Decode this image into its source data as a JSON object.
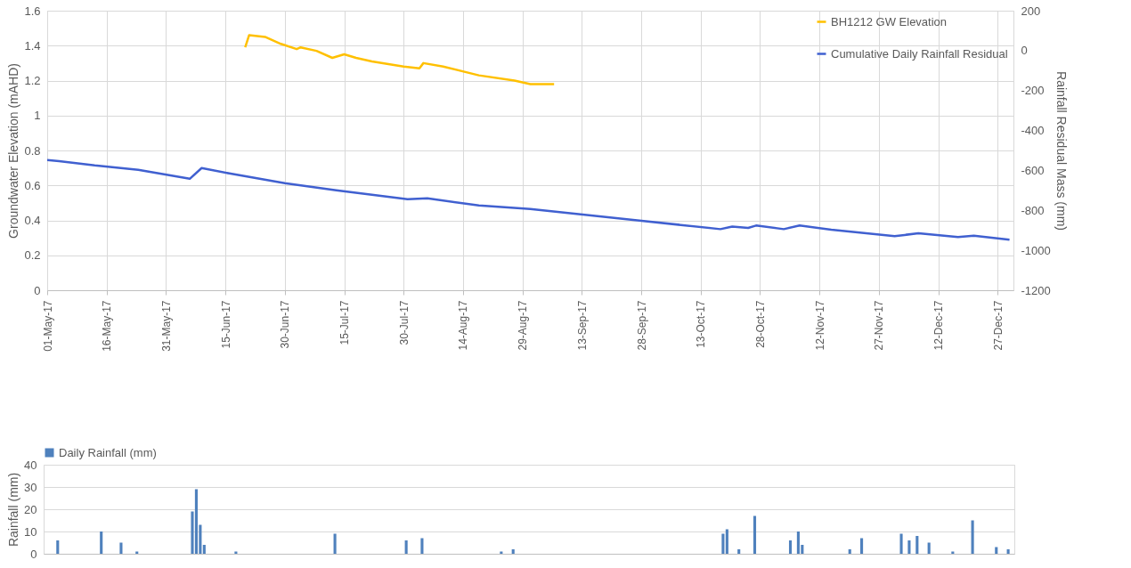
{
  "chart_data": [
    {
      "type": "line",
      "ylabel": "Groundwater Elevation (mAHD)",
      "y2label": "Rainfall Residual Mass (mm)",
      "legend": "top right",
      "grid": true,
      "xlim": [
        "--05-01",
        "--12-31"
      ],
      "xticks": [
        {
          "value": "--05-01",
          "label": "01-May-17"
        },
        {
          "value": "--05-16",
          "label": "16-May-17"
        },
        {
          "value": "--05-31",
          "label": "31-May-17"
        },
        {
          "value": "--06-15",
          "label": "15-Jun-17"
        },
        {
          "value": "--06-30",
          "label": "30-Jun-17"
        },
        {
          "value": "--07-15",
          "label": "15-Jul-17"
        },
        {
          "value": "--07-30",
          "label": "30-Jul-17"
        },
        {
          "value": "--08-14",
          "label": "14-Aug-17"
        },
        {
          "value": "--08-29",
          "label": "29-Aug-17"
        },
        {
          "value": "--09-13",
          "label": "13-Sep-17"
        },
        {
          "value": "--09-28",
          "label": "28-Sep-17"
        },
        {
          "value": "--10-13",
          "label": "13-Oct-17"
        },
        {
          "value": "--10-28",
          "label": "28-Oct-17"
        },
        {
          "value": "--11-12",
          "label": "12-Nov-17"
        },
        {
          "value": "--11-27",
          "label": "27-Nov-17"
        },
        {
          "value": "--12-12",
          "label": "12-Dec-17"
        },
        {
          "value": "--12-27",
          "label": "27-Dec-17"
        }
      ],
      "ylim": [
        0,
        1.6
      ],
      "yticks": [
        0,
        {
          "value": 0.2,
          "label": "0.2"
        },
        {
          "value": 0.4,
          "label": "0.4"
        },
        {
          "value": 0.6,
          "label": "0.6"
        },
        {
          "value": 0.8,
          "label": "0.8"
        },
        1,
        {
          "value": 1.2,
          "label": "1.2"
        },
        {
          "value": 1.4,
          "label": "1.4"
        },
        {
          "value": 1.6,
          "label": "1.6"
        }
      ],
      "y2lim": [
        -1200,
        200
      ],
      "y2ticks": [
        -1200,
        -1000,
        -800,
        -600,
        -400,
        -200,
        0,
        200
      ],
      "series": [
        {
          "name": "BH1212 GW Elevation",
          "color": "#ffc000",
          "x": [
            "--06-20",
            "--06-21",
            "--06-25",
            "--06-29",
            "--07-03",
            "--07-04",
            "--07-08",
            "--07-12",
            "--07-15",
            "--07-18",
            "--07-22",
            "--07-30",
            "--08-03",
            "--08-04",
            "--08-09",
            "--08-18",
            "--08-27",
            "--08-31",
            "--09-06"
          ],
          "values": [
            1.39,
            1.46,
            1.45,
            1.41,
            1.38,
            1.39,
            1.37,
            1.33,
            1.35,
            1.33,
            1.31,
            1.28,
            1.27,
            1.3,
            1.28,
            1.23,
            1.2,
            1.18,
            1.18
          ]
        },
        {
          "name": "Cumulative Daily Rainfall Residual",
          "axis": "y2",
          "color": "#4060d0",
          "x": [
            "--05-01",
            "--05-04",
            "--05-13",
            "--05-24",
            "--06-06",
            "--06-09",
            "--06-16",
            "--06-30",
            "--07-13",
            "--07-31",
            "--08-05",
            "--08-18",
            "--08-31",
            "--09-27",
            "--10-18",
            "--10-21",
            "--10-25",
            "--10-27",
            "--11-03",
            "--11-07",
            "--11-15",
            "--12-01",
            "--12-07",
            "--12-17",
            "--12-21",
            "--12-30"
          ],
          "values": [
            -548,
            -553,
            -575,
            -597,
            -642,
            -588,
            -615,
            -664,
            -700,
            -744,
            -740,
            -775,
            -793,
            -850,
            -894,
            -881,
            -888,
            -876,
            -894,
            -876,
            -897,
            -929,
            -915,
            -934,
            -927,
            -947
          ]
        }
      ]
    },
    {
      "type": "bar",
      "ylabel": "Rainfall (mm)",
      "legend": "top",
      "grid": "y",
      "tick_labels": "y",
      "ylim": [
        0,
        40
      ],
      "yticks": [
        0,
        10,
        20,
        30,
        40
      ],
      "categories": [
        null,
        null,
        null,
        null,
        null,
        null,
        null,
        null,
        null,
        null,
        null,
        null,
        null,
        null,
        null,
        null,
        null,
        null,
        null,
        null,
        null,
        null,
        null,
        null,
        null,
        null,
        null,
        null,
        null,
        null,
        null,
        null,
        null,
        null,
        null,
        null,
        null,
        null,
        null,
        null,
        null,
        null,
        null,
        null,
        null,
        null,
        null,
        null,
        null,
        null,
        null,
        null,
        null,
        null,
        null,
        null,
        null,
        null,
        null,
        null,
        null,
        null,
        null,
        null,
        null,
        null,
        null,
        null,
        null,
        null,
        null,
        null,
        null,
        null,
        null,
        null,
        null,
        null,
        null,
        null,
        null,
        null,
        null,
        null,
        null,
        null,
        null,
        null,
        null,
        null,
        null,
        null,
        null,
        null,
        null,
        null,
        null,
        null,
        null,
        null,
        null,
        null,
        null,
        null,
        null,
        null,
        null,
        null,
        null,
        null,
        null,
        null,
        null,
        null,
        null,
        null,
        null,
        null,
        null,
        null,
        null,
        null,
        null,
        null,
        null,
        null,
        null,
        null,
        null,
        null,
        null,
        null,
        null,
        null,
        null,
        null,
        null,
        null,
        null,
        null,
        null,
        null,
        null,
        null,
        null,
        null,
        null,
        null,
        null,
        null,
        null,
        null,
        null,
        null,
        null,
        null,
        null,
        null,
        null,
        null,
        null,
        null,
        null,
        null,
        null,
        null,
        null,
        null,
        null,
        null,
        null,
        null,
        null,
        null,
        null,
        null,
        null,
        null,
        null,
        null,
        null,
        null,
        null,
        null,
        null,
        null,
        null,
        null,
        null,
        null,
        null,
        null,
        null,
        null,
        null,
        null,
        null,
        null,
        null,
        null,
        null,
        null,
        null,
        null,
        null,
        null,
        null,
        null,
        null,
        null,
        null,
        null,
        null,
        null,
        null,
        null,
        null,
        null,
        null,
        null,
        null,
        null,
        null,
        null,
        null,
        null,
        null,
        null,
        null,
        null,
        null,
        null,
        null,
        null,
        null,
        null,
        null,
        null,
        null,
        null,
        null,
        null,
        null,
        null,
        null
      ],
      "series": [
        {
          "name": "Daily Rainfall (mm)",
          "color": "#4f81bd",
          "values": [
            0,
            0,
            0,
            6,
            0,
            0,
            0,
            0,
            0,
            0,
            0,
            0,
            0,
            0,
            10,
            0,
            0,
            0,
            0,
            5,
            0,
            0,
            0,
            1,
            0,
            0,
            0,
            0,
            0,
            0,
            0,
            0,
            0,
            0,
            0,
            0,
            0,
            19,
            29,
            13,
            4,
            0,
            0,
            0,
            0,
            0,
            0,
            0,
            1,
            0,
            0,
            0,
            0,
            0,
            0,
            0,
            0,
            0,
            0,
            0,
            0,
            0,
            0,
            0,
            0,
            0,
            0,
            0,
            0,
            0,
            0,
            0,
            0,
            9,
            0,
            0,
            0,
            0,
            0,
            0,
            0,
            0,
            0,
            0,
            0,
            0,
            0,
            0,
            0,
            0,
            0,
            6,
            0,
            0,
            0,
            7,
            0,
            0,
            0,
            0,
            0,
            0,
            0,
            0,
            0,
            0,
            0,
            0,
            0,
            0,
            0,
            0,
            0,
            0,
            0,
            1,
            0,
            0,
            2,
            0,
            0,
            0,
            0,
            0,
            0,
            0,
            0,
            0,
            0,
            0,
            0,
            0,
            0,
            0,
            0,
            0,
            0,
            0,
            0,
            0,
            0,
            0,
            0,
            0,
            0,
            0,
            0,
            0,
            0,
            0,
            0,
            0,
            0,
            0,
            0,
            0,
            0,
            0,
            0,
            0,
            0,
            0,
            0,
            0,
            0,
            0,
            0,
            0,
            0,
            0,
            0,
            9,
            11,
            0,
            0,
            2,
            0,
            0,
            0,
            17,
            0,
            0,
            0,
            0,
            0,
            0,
            0,
            0,
            6,
            0,
            10,
            4,
            0,
            0,
            0,
            0,
            0,
            0,
            0,
            0,
            0,
            0,
            0,
            2,
            0,
            0,
            7,
            0,
            0,
            0,
            0,
            0,
            0,
            0,
            0,
            0,
            9,
            0,
            6,
            0,
            8,
            0,
            0,
            5,
            0,
            0,
            0,
            0,
            0,
            1,
            0,
            0,
            0,
            0,
            15,
            0,
            0,
            0,
            0,
            0,
            3,
            0,
            0,
            2,
            0
          ]
        }
      ]
    }
  ]
}
